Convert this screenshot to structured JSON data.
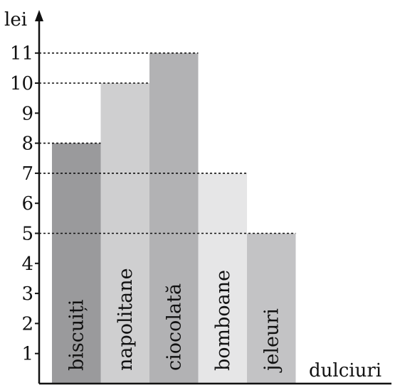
{
  "chart_data": {
    "type": "bar",
    "categories": [
      "biscuiți",
      "napolitane",
      "ciocolată",
      "bomboane",
      "jeleuri"
    ],
    "values": [
      8,
      10,
      11,
      7,
      5
    ],
    "colors": [
      "#9a9a9c",
      "#cfcfd0",
      "#b2b2b4",
      "#e6e6e7",
      "#c3c3c5"
    ],
    "xlabel": "dulciuri",
    "ylabel": "lei",
    "ylim": [
      0,
      12
    ],
    "yticks": [
      "1",
      "2",
      "3",
      "4",
      "5",
      "6",
      "7",
      "8",
      "9",
      "10",
      "11"
    ],
    "guides": "dashed lines from y-axis to bar tops",
    "grid": false,
    "labels_on_bars": "rotated vertical, bottom-up"
  }
}
